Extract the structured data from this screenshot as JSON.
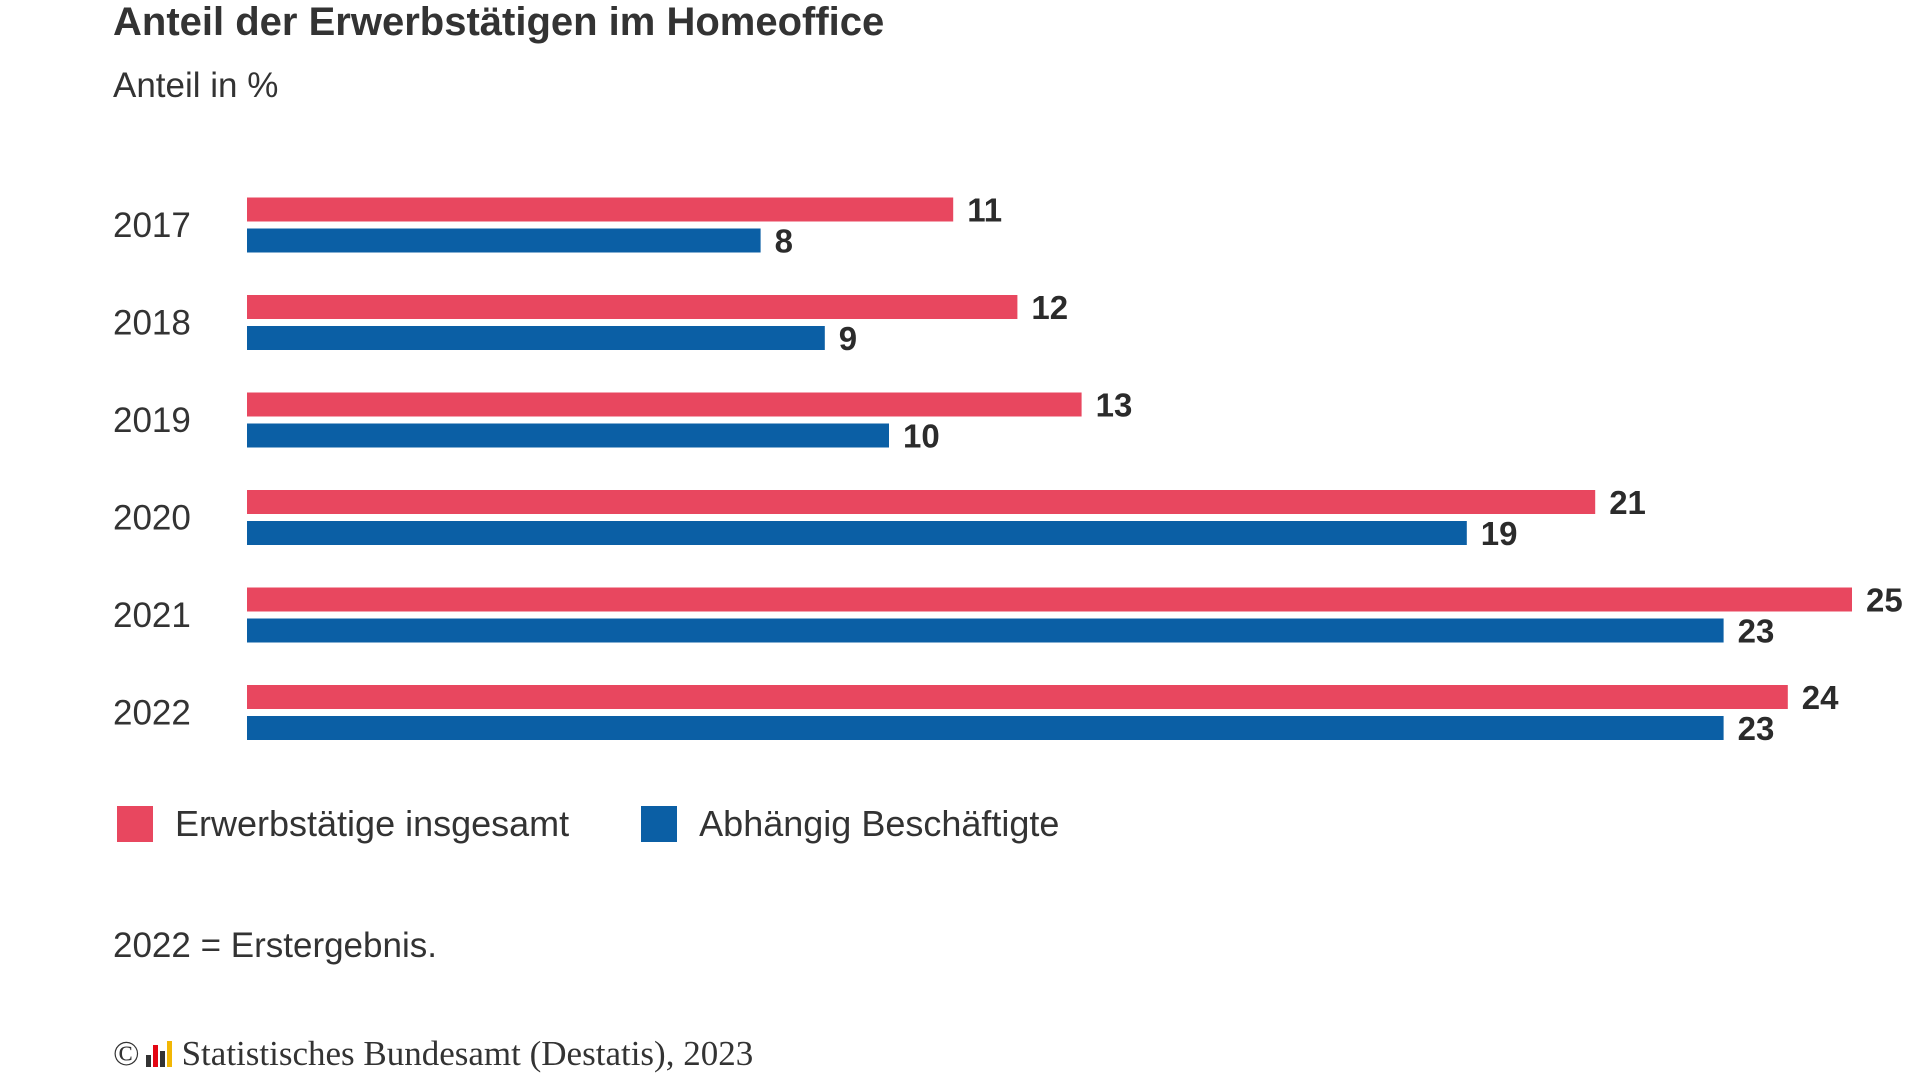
{
  "chart_data": {
    "type": "bar",
    "orientation": "horizontal",
    "title": "Anteil der Erwerbstätigen im Homeoffice",
    "subtitle": "Anteil in %",
    "categories": [
      "2017",
      "2018",
      "2019",
      "2020",
      "2021",
      "2022"
    ],
    "series": [
      {
        "name": "Erwerbstätige insgesamt",
        "color": "#e8475f",
        "values": [
          11,
          12,
          13,
          21,
          25,
          24
        ]
      },
      {
        "name": "Abhängig Beschäftigte",
        "color": "#0b5fa5",
        "values": [
          8,
          9,
          10,
          19,
          23,
          23
        ]
      }
    ],
    "xlim": [
      0,
      25
    ],
    "grid": false,
    "legend_position": "bottom-left",
    "data_labels": true
  },
  "note": "2022 = Erstergebnis.",
  "source": {
    "copyright": "©",
    "text": "Statistisches Bundesamt (Destatis), 2023",
    "logo_icon": "destatis-logo-icon"
  }
}
